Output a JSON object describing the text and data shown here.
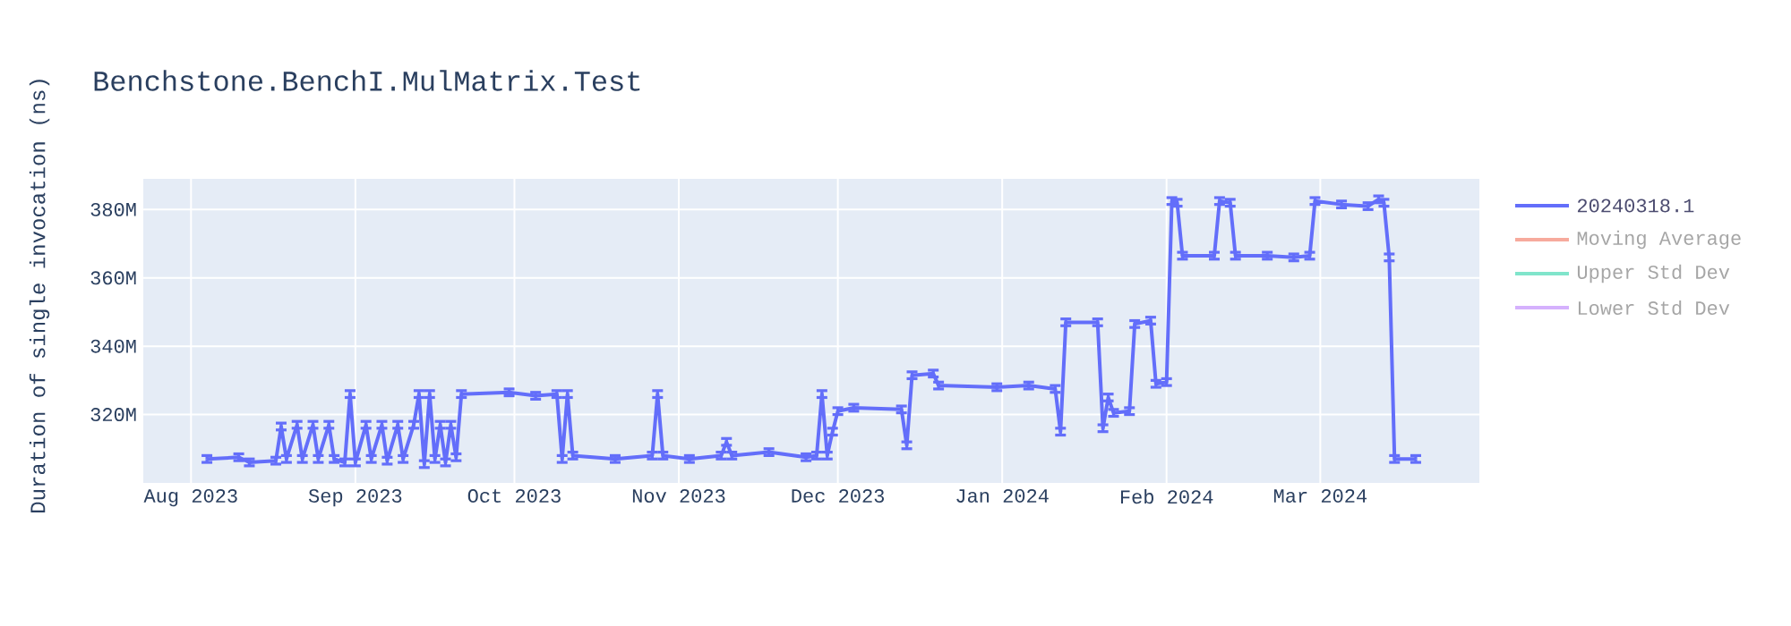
{
  "chart_data": {
    "type": "line",
    "title": "Benchstone.BenchI.MulMatrix.Test",
    "ylabel": "Duration of single invocation (ns)",
    "xlim": [
      "2023-07-23",
      "2024-03-31"
    ],
    "xticks": [
      {
        "value": "2023-08-01",
        "label": "Aug 2023"
      },
      {
        "value": "2023-09-01",
        "label": "Sep 2023"
      },
      {
        "value": "2023-10-01",
        "label": "Oct 2023"
      },
      {
        "value": "2023-11-01",
        "label": "Nov 2023"
      },
      {
        "value": "2023-12-01",
        "label": "Dec 2023"
      },
      {
        "value": "2024-01-01",
        "label": "Jan 2024"
      },
      {
        "value": "2024-02-01",
        "label": "Feb 2024"
      },
      {
        "value": "2024-03-01",
        "label": "Mar 2024"
      }
    ],
    "ylim": [
      300000000,
      389000000
    ],
    "yticks": [
      {
        "value": 320000000,
        "label": "320M"
      },
      {
        "value": 340000000,
        "label": "340M"
      },
      {
        "value": 360000000,
        "label": "360M"
      },
      {
        "value": 380000000,
        "label": "380M"
      }
    ],
    "grid": true,
    "legend": "top right",
    "marker": "none",
    "line_style": "solid",
    "x": [
      "2023-08-04",
      "2023-08-10",
      "2023-08-12",
      "2023-08-17",
      "2023-08-18",
      "2023-08-19",
      "2023-08-21",
      "2023-08-22",
      "2023-08-24",
      "2023-08-25",
      "2023-08-27",
      "2023-08-28",
      "2023-08-30",
      "2023-08-31",
      "2023-09-01",
      "2023-09-03",
      "2023-09-04",
      "2023-09-06",
      "2023-09-07",
      "2023-09-09",
      "2023-09-10",
      "2023-09-12",
      "2023-09-13",
      "2023-09-14",
      "2023-09-15",
      "2023-09-16",
      "2023-09-17",
      "2023-09-18",
      "2023-09-19",
      "2023-09-20",
      "2023-09-21",
      "2023-09-30",
      "2023-10-05",
      "2023-10-09",
      "2023-10-10",
      "2023-10-11",
      "2023-10-12",
      "2023-10-20",
      "2023-10-27",
      "2023-10-28",
      "2023-10-29",
      "2023-11-03",
      "2023-11-09",
      "2023-11-10",
      "2023-11-11",
      "2023-11-18",
      "2023-11-25",
      "2023-11-27",
      "2023-11-28",
      "2023-11-29",
      "2023-11-30",
      "2023-12-01",
      "2023-12-04",
      "2023-12-13",
      "2023-12-14",
      "2023-12-15",
      "2023-12-19",
      "2023-12-20",
      "2023-12-31",
      "2024-01-06",
      "2024-01-11",
      "2024-01-12",
      "2024-01-13",
      "2024-01-19",
      "2024-01-20",
      "2024-01-21",
      "2024-01-22",
      "2024-01-25",
      "2024-01-26",
      "2024-01-29",
      "2024-01-30",
      "2024-02-01",
      "2024-02-02",
      "2024-02-03",
      "2024-02-04",
      "2024-02-10",
      "2024-02-11",
      "2024-02-13",
      "2024-02-14",
      "2024-02-20",
      "2024-02-25",
      "2024-02-28",
      "2024-02-29",
      "2024-03-05",
      "2024-03-10",
      "2024-03-12",
      "2024-03-13",
      "2024-03-14",
      "2024-03-15",
      "2024-03-19"
    ],
    "series": [
      {
        "name": "20240318.1",
        "color": "#636efa",
        "values": [
          307000000,
          307500000,
          306000000,
          306500000,
          316500000,
          307000000,
          317000000,
          307000000,
          317000000,
          307000000,
          317000000,
          307000000,
          306000000,
          326000000,
          306000000,
          317000000,
          307000000,
          317000000,
          306500000,
          317000000,
          307000000,
          317000000,
          326000000,
          305500000,
          326000000,
          307000000,
          317000000,
          306000000,
          317000000,
          307500000,
          326000000,
          326500000,
          325500000,
          326000000,
          307000000,
          326000000,
          308000000,
          307000000,
          308000000,
          326000000,
          308000000,
          307000000,
          308000000,
          312000000,
          308000000,
          309000000,
          307500000,
          308000000,
          326000000,
          308000000,
          315000000,
          321000000,
          322000000,
          321500000,
          311000000,
          331500000,
          332000000,
          328500000,
          328000000,
          328500000,
          327500000,
          315000000,
          347000000,
          347000000,
          316000000,
          325000000,
          320500000,
          321000000,
          346500000,
          347500000,
          329000000,
          329500000,
          382500000,
          382000000,
          366500000,
          366500000,
          382500000,
          382000000,
          366500000,
          366500000,
          366000000,
          366500000,
          382500000,
          381500000,
          381000000,
          383000000,
          382000000,
          366000000,
          307000000,
          307000000
        ],
        "errors": [
          1000000,
          1000000,
          1000000,
          1000000,
          1000000,
          1000000,
          1000000,
          1000000,
          1000000,
          1000000,
          1000000,
          1000000,
          1000000,
          1000000,
          1000000,
          1000000,
          1000000,
          1000000,
          1000000,
          1000000,
          1000000,
          1000000,
          1000000,
          1000000,
          1000000,
          1000000,
          1000000,
          1000000,
          1000000,
          1000000,
          1000000,
          1000000,
          1000000,
          1000000,
          1000000,
          1000000,
          1000000,
          1000000,
          1000000,
          1000000,
          1000000,
          1000000,
          1000000,
          1000000,
          1000000,
          1000000,
          1000000,
          1000000,
          1000000,
          1000000,
          1000000,
          1000000,
          1000000,
          1000000,
          1000000,
          1000000,
          1000000,
          1000000,
          1000000,
          1000000,
          1000000,
          1000000,
          1000000,
          1000000,
          1000000,
          1000000,
          1000000,
          1000000,
          1000000,
          1000000,
          1000000,
          1000000,
          1000000,
          1000000,
          1000000,
          1000000,
          1000000,
          1000000,
          1000000,
          1000000,
          1000000,
          1000000,
          1000000,
          1000000,
          1000000,
          1000000,
          1000000,
          1000000,
          1000000,
          1000000
        ]
      },
      {
        "name": "Moving Average",
        "color": "#f7aa9d",
        "values": [
          null,
          null,
          null,
          null,
          null,
          null,
          null,
          null,
          null,
          null,
          null,
          null,
          null,
          null,
          null,
          null,
          null,
          null,
          null,
          null,
          null,
          null,
          null,
          null,
          null,
          null,
          null,
          null,
          null,
          null,
          null,
          null,
          null,
          null,
          null,
          null,
          null,
          null,
          null,
          null,
          null,
          null,
          null,
          null,
          null,
          null,
          null,
          null,
          null,
          null,
          null,
          null,
          null,
          null,
          null,
          null,
          null,
          null,
          null,
          null,
          null,
          null,
          null,
          null,
          null,
          null,
          null,
          null,
          null,
          null,
          null,
          null,
          null,
          null,
          null,
          null,
          null,
          null,
          null,
          null,
          null,
          null,
          null,
          null,
          null,
          null,
          null,
          null,
          null,
          null
        ]
      },
      {
        "name": "Upper Std Dev",
        "color": "#80e5cb",
        "values": [
          null,
          null,
          null,
          null,
          null,
          null,
          null,
          null,
          null,
          null,
          null,
          null,
          null,
          null,
          null,
          null,
          null,
          null,
          null,
          null,
          null,
          null,
          null,
          null,
          null,
          null,
          null,
          null,
          null,
          null,
          null,
          null,
          null,
          null,
          null,
          null,
          null,
          null,
          null,
          null,
          null,
          null,
          null,
          null,
          null,
          null,
          null,
          null,
          null,
          null,
          null,
          null,
          null,
          null,
          null,
          null,
          null,
          null,
          null,
          null,
          null,
          null,
          null,
          null,
          null,
          null,
          null,
          null,
          null,
          null,
          null,
          null,
          null,
          null,
          null,
          null,
          null,
          null,
          null,
          null,
          null,
          null,
          null,
          null,
          null,
          null,
          null,
          null,
          null,
          null
        ]
      },
      {
        "name": "Lower Std Dev",
        "color": "#d5b1fd",
        "values": [
          null,
          null,
          null,
          null,
          null,
          null,
          null,
          null,
          null,
          null,
          null,
          null,
          null,
          null,
          null,
          null,
          null,
          null,
          null,
          null,
          null,
          null,
          null,
          null,
          null,
          null,
          null,
          null,
          null,
          null,
          null,
          null,
          null,
          null,
          null,
          null,
          null,
          null,
          null,
          null,
          null,
          null,
          null,
          null,
          null,
          null,
          null,
          null,
          null,
          null,
          null,
          null,
          null,
          null,
          null,
          null,
          null,
          null,
          null,
          null,
          null,
          null,
          null,
          null,
          null,
          null,
          null,
          null,
          null,
          null,
          null,
          null,
          null,
          null,
          null,
          null,
          null,
          null,
          null,
          null,
          null,
          null,
          null,
          null,
          null,
          null,
          null,
          null,
          null,
          null
        ]
      }
    ]
  }
}
